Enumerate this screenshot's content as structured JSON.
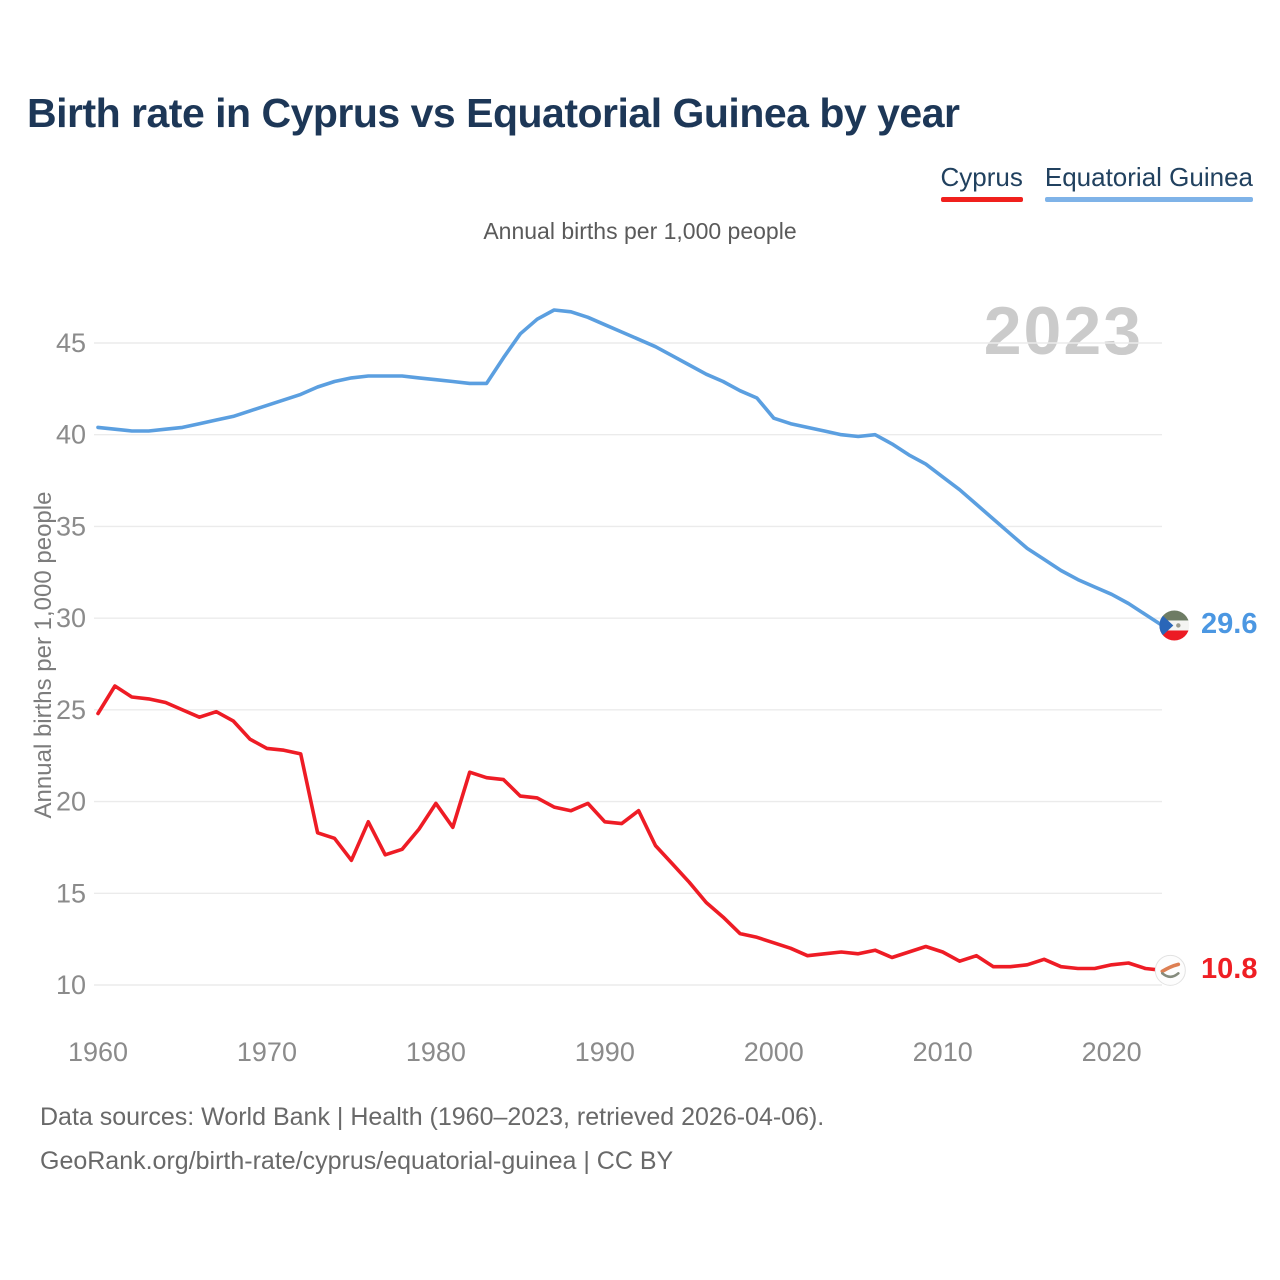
{
  "page": {
    "title": "Birth rate in Cyprus vs Equatorial Guinea by year",
    "subtitle": "Annual births per 1,000 people",
    "watermark": "2023"
  },
  "legend": {
    "items": [
      {
        "label": "Cyprus",
        "color": "#f0201d"
      },
      {
        "label": "Equatorial Guinea",
        "color": "#7fb3e8"
      }
    ]
  },
  "y_axis": {
    "title": "Annual births per 1,000 people",
    "ticks": [
      45,
      40,
      35,
      30,
      25,
      20,
      15,
      10
    ]
  },
  "x_axis": {
    "ticks": [
      1960,
      1970,
      1980,
      1990,
      2000,
      2010,
      2020
    ]
  },
  "footer": {
    "line1": "Data sources: World Bank | Health (1960–2023, retrieved 2026-04-06).",
    "line2": "GeoRank.org/birth-rate/cyprus/equatorial-guinea | CC BY"
  },
  "colors": {
    "title": "#1d3757",
    "tick_labels": "#8b8b8b",
    "gridlines": "#ebebeb",
    "watermark": "#cbcbcb",
    "cyprus_line": "#ee1c25",
    "equatorial_guinea_line": "#5b9fe0"
  },
  "icons": {
    "cyprus_marker": "cyprus-flag-icon",
    "equatorial_guinea_marker": "equatorial-guinea-flag-icon"
  },
  "chart_data": {
    "type": "line",
    "title": "Birth rate in Cyprus vs Equatorial Guinea by year",
    "ylabel": "Annual births per 1,000 people",
    "xlabel": "",
    "ylim": [
      10,
      47.5
    ],
    "xlim": [
      1960,
      2023
    ],
    "grid": true,
    "legend_position": "top-right",
    "x": [
      1960,
      1961,
      1962,
      1963,
      1964,
      1965,
      1966,
      1967,
      1968,
      1969,
      1970,
      1971,
      1972,
      1973,
      1974,
      1975,
      1976,
      1977,
      1978,
      1979,
      1980,
      1981,
      1982,
      1983,
      1984,
      1985,
      1986,
      1987,
      1988,
      1989,
      1990,
      1991,
      1992,
      1993,
      1994,
      1995,
      1996,
      1997,
      1998,
      1999,
      2000,
      2001,
      2002,
      2003,
      2004,
      2005,
      2006,
      2007,
      2008,
      2009,
      2010,
      2011,
      2012,
      2013,
      2014,
      2015,
      2016,
      2017,
      2018,
      2019,
      2020,
      2021,
      2022,
      2023
    ],
    "series": [
      {
        "name": "Cyprus",
        "color": "#ee1c25",
        "end_label": "10.8",
        "values": [
          24.8,
          26.3,
          25.7,
          25.6,
          25.4,
          25.0,
          24.6,
          24.9,
          24.4,
          23.4,
          22.9,
          22.8,
          22.6,
          18.3,
          18.0,
          16.8,
          18.9,
          17.1,
          17.4,
          18.5,
          19.9,
          18.6,
          21.6,
          21.3,
          21.2,
          20.3,
          20.2,
          19.7,
          19.5,
          19.9,
          18.9,
          18.8,
          19.5,
          17.6,
          16.6,
          15.6,
          14.5,
          13.7,
          12.8,
          12.6,
          12.3,
          12.0,
          11.6,
          11.7,
          11.8,
          11.7,
          11.9,
          11.5,
          11.8,
          12.1,
          11.8,
          11.3,
          11.6,
          11.0,
          11.0,
          11.1,
          11.4,
          11.0,
          10.9,
          10.9,
          11.1,
          11.2,
          10.9,
          10.8
        ]
      },
      {
        "name": "Equatorial Guinea",
        "color": "#5b9fe0",
        "end_label": "29.6",
        "values": [
          40.4,
          40.3,
          40.2,
          40.2,
          40.3,
          40.4,
          40.6,
          40.8,
          41.0,
          41.3,
          41.6,
          41.9,
          42.2,
          42.6,
          42.9,
          43.1,
          43.2,
          43.2,
          43.2,
          43.1,
          43.0,
          42.9,
          42.8,
          42.8,
          44.2,
          45.5,
          46.3,
          46.8,
          46.7,
          46.4,
          46.0,
          45.6,
          45.2,
          44.8,
          44.3,
          43.8,
          43.3,
          42.9,
          42.4,
          42.0,
          40.9,
          40.6,
          40.4,
          40.2,
          40.0,
          39.9,
          40.0,
          39.5,
          38.9,
          38.4,
          37.7,
          37.0,
          36.2,
          35.4,
          34.6,
          33.8,
          33.2,
          32.6,
          32.1,
          31.7,
          31.3,
          30.8,
          30.2,
          29.6
        ]
      }
    ]
  }
}
